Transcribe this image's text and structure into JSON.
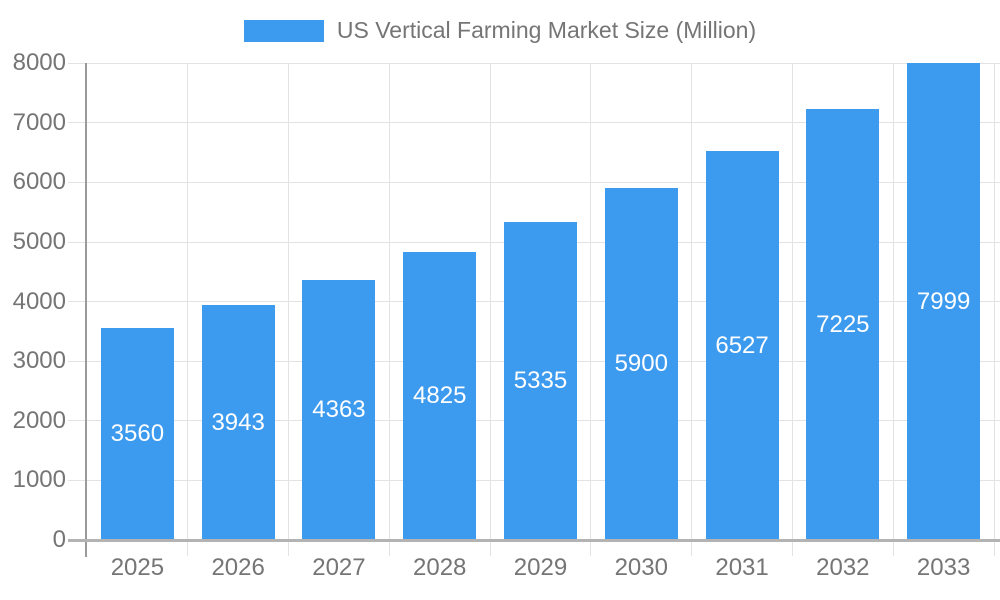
{
  "chart_data": {
    "type": "bar",
    "title": "",
    "legend": "US Vertical Farming Market Size (Million)",
    "legend_position": "top",
    "categories": [
      "2025",
      "2026",
      "2027",
      "2028",
      "2029",
      "2030",
      "2031",
      "2032",
      "2033"
    ],
    "values": [
      3560,
      3943,
      4363,
      4825,
      5335,
      5900,
      6527,
      7225,
      7999
    ],
    "value_labels": [
      "3560",
      "3943",
      "4363",
      "4825",
      "5335",
      "5900",
      "6527",
      "7225",
      "7999"
    ],
    "xlabel": "",
    "ylabel": "",
    "ylim": [
      0,
      8000
    ],
    "ytick_step": 1000,
    "yticks": [
      "0",
      "1000",
      "2000",
      "3000",
      "4000",
      "5000",
      "6000",
      "7000",
      "8000"
    ],
    "grid": true,
    "colors": {
      "bar": "#3C9AEF",
      "value_label": "#FFFFFF",
      "axis_text": "#757575",
      "gridline": "#E3E3E3",
      "y_axis_line": "#9A9A9A",
      "x_axis_line": "#B3B3B3",
      "background": "#FFFFFF"
    }
  }
}
